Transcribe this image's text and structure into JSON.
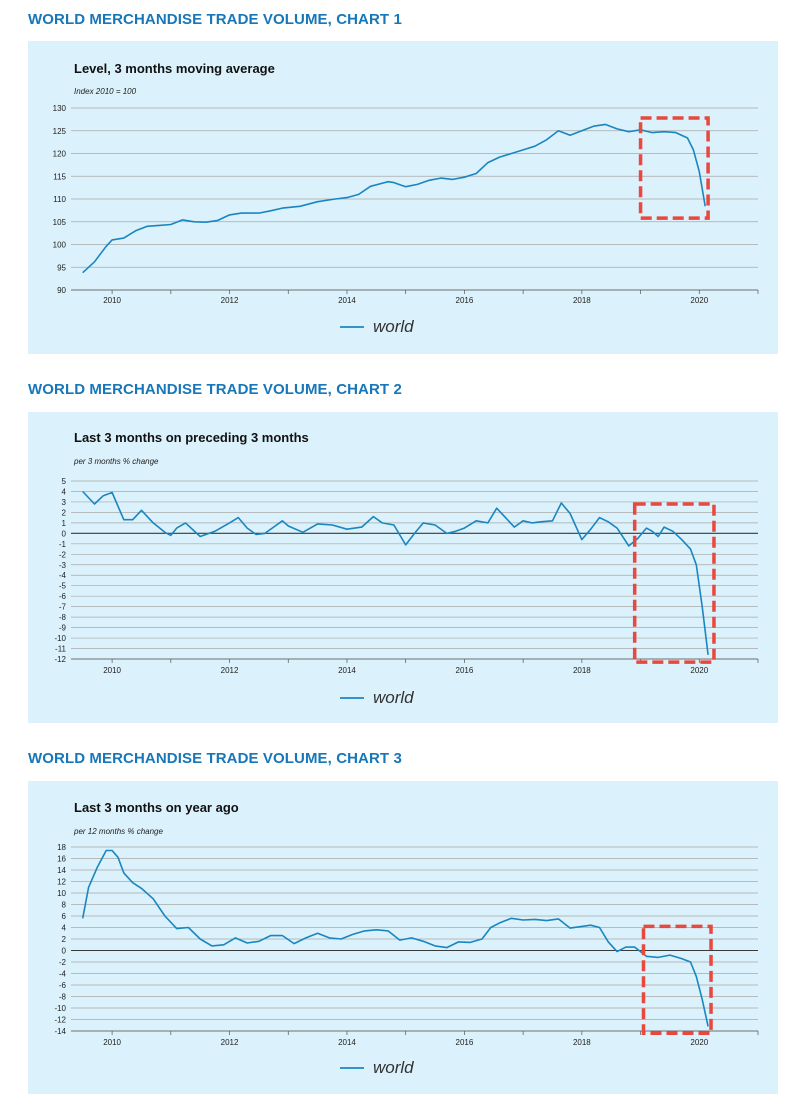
{
  "headings": [
    "WORLD MERCHANDISE TRADE VOLUME, CHART 1",
    "WORLD MERCHANDISE TRADE VOLUME, CHART 2",
    "WORLD MERCHANDISE TRADE VOLUME, CHART 3"
  ],
  "colors": {
    "line": "#1a86c0",
    "heading": "#1777b8",
    "panel": "#dbf1fb",
    "highlight": "#e8483d"
  },
  "chart_data": [
    {
      "type": "line",
      "title": "Level, 3 months moving average",
      "unit_label": "Index 2010 = 100",
      "ylim": [
        90,
        130
      ],
      "yticks": [
        90,
        95,
        100,
        105,
        110,
        115,
        120,
        125,
        130
      ],
      "xlim": [
        2009.3,
        2021.0
      ],
      "xticks": [
        2010,
        2012,
        2014,
        2016,
        2018,
        2020
      ],
      "legend": [
        "world"
      ],
      "legend_position": "bottom-center",
      "grid": true,
      "highlight_box": {
        "x": [
          2019.0,
          2020.15
        ],
        "y": [
          105.8,
          127.8
        ]
      },
      "series": [
        {
          "name": "world",
          "points": [
            [
              2009.5,
              93.8
            ],
            [
              2009.7,
              96.2
            ],
            [
              2009.9,
              99.6
            ],
            [
              2010.0,
              101.0
            ],
            [
              2010.2,
              101.4
            ],
            [
              2010.4,
              103.0
            ],
            [
              2010.6,
              104.0
            ],
            [
              2010.8,
              104.2
            ],
            [
              2011.0,
              104.4
            ],
            [
              2011.2,
              105.4
            ],
            [
              2011.4,
              105.0
            ],
            [
              2011.6,
              104.9
            ],
            [
              2011.8,
              105.3
            ],
            [
              2012.0,
              106.5
            ],
            [
              2012.2,
              106.9
            ],
            [
              2012.5,
              106.9
            ],
            [
              2012.7,
              107.4
            ],
            [
              2012.9,
              108.0
            ],
            [
              2013.2,
              108.4
            ],
            [
              2013.5,
              109.4
            ],
            [
              2013.8,
              110.0
            ],
            [
              2014.0,
              110.3
            ],
            [
              2014.2,
              111.0
            ],
            [
              2014.4,
              112.8
            ],
            [
              2014.7,
              113.8
            ],
            [
              2014.8,
              113.6
            ],
            [
              2015.0,
              112.7
            ],
            [
              2015.2,
              113.2
            ],
            [
              2015.4,
              114.1
            ],
            [
              2015.6,
              114.6
            ],
            [
              2015.8,
              114.3
            ],
            [
              2016.0,
              114.8
            ],
            [
              2016.2,
              115.6
            ],
            [
              2016.4,
              118.0
            ],
            [
              2016.6,
              119.2
            ],
            [
              2016.8,
              120.0
            ],
            [
              2017.0,
              120.8
            ],
            [
              2017.2,
              121.6
            ],
            [
              2017.4,
              123.0
            ],
            [
              2017.6,
              125.0
            ],
            [
              2017.8,
              124.0
            ],
            [
              2018.0,
              125.0
            ],
            [
              2018.2,
              126.0
            ],
            [
              2018.4,
              126.4
            ],
            [
              2018.6,
              125.4
            ],
            [
              2018.8,
              124.8
            ],
            [
              2019.0,
              125.2
            ],
            [
              2019.2,
              124.6
            ],
            [
              2019.4,
              124.8
            ],
            [
              2019.6,
              124.6
            ],
            [
              2019.8,
              123.4
            ],
            [
              2019.9,
              120.8
            ],
            [
              2020.0,
              116.0
            ],
            [
              2020.1,
              108.4
            ]
          ]
        }
      ]
    },
    {
      "type": "line",
      "title": "Last 3 months on preceding 3 months",
      "unit_label": "per 3 months % change",
      "ylim": [
        -12,
        5
      ],
      "yticks": [
        5,
        4,
        3,
        2,
        1,
        0,
        -1,
        -2,
        -3,
        -4,
        -5,
        -6,
        -7,
        -8,
        -9,
        -10,
        -11,
        -12
      ],
      "xlim": [
        2009.3,
        2021.0
      ],
      "xticks": [
        2010,
        2012,
        2014,
        2016,
        2018,
        2020
      ],
      "legend": [
        "world"
      ],
      "legend_position": "bottom-center",
      "grid": true,
      "highlight_box": {
        "x": [
          2018.9,
          2020.25
        ],
        "y": [
          -12.3,
          2.8
        ]
      },
      "series": [
        {
          "name": "world",
          "points": [
            [
              2009.5,
              4.0
            ],
            [
              2009.7,
              2.8
            ],
            [
              2009.85,
              3.6
            ],
            [
              2010.0,
              3.9
            ],
            [
              2010.2,
              1.3
            ],
            [
              2010.35,
              1.3
            ],
            [
              2010.5,
              2.2
            ],
            [
              2010.7,
              1.0
            ],
            [
              2010.9,
              0.1
            ],
            [
              2011.0,
              -0.2
            ],
            [
              2011.1,
              0.5
            ],
            [
              2011.25,
              1.0
            ],
            [
              2011.5,
              -0.3
            ],
            [
              2011.75,
              0.2
            ],
            [
              2012.0,
              1.0
            ],
            [
              2012.15,
              1.5
            ],
            [
              2012.3,
              0.5
            ],
            [
              2012.45,
              -0.1
            ],
            [
              2012.6,
              0.0
            ],
            [
              2012.75,
              0.6
            ],
            [
              2012.9,
              1.2
            ],
            [
              2013.0,
              0.7
            ],
            [
              2013.25,
              0.1
            ],
            [
              2013.5,
              0.9
            ],
            [
              2013.75,
              0.8
            ],
            [
              2014.0,
              0.4
            ],
            [
              2014.25,
              0.6
            ],
            [
              2014.45,
              1.6
            ],
            [
              2014.6,
              1.0
            ],
            [
              2014.8,
              0.8
            ],
            [
              2015.0,
              -1.1
            ],
            [
              2015.15,
              0.0
            ],
            [
              2015.3,
              1.0
            ],
            [
              2015.5,
              0.8
            ],
            [
              2015.7,
              0.0
            ],
            [
              2015.85,
              0.2
            ],
            [
              2016.0,
              0.5
            ],
            [
              2016.2,
              1.2
            ],
            [
              2016.4,
              1.0
            ],
            [
              2016.55,
              2.4
            ],
            [
              2016.7,
              1.5
            ],
            [
              2016.85,
              0.6
            ],
            [
              2017.0,
              1.2
            ],
            [
              2017.15,
              1.0
            ],
            [
              2017.3,
              1.1
            ],
            [
              2017.5,
              1.2
            ],
            [
              2017.65,
              2.9
            ],
            [
              2017.8,
              1.9
            ],
            [
              2018.0,
              -0.6
            ],
            [
              2018.15,
              0.4
            ],
            [
              2018.3,
              1.5
            ],
            [
              2018.45,
              1.1
            ],
            [
              2018.6,
              0.5
            ],
            [
              2018.8,
              -1.2
            ],
            [
              2018.95,
              -0.5
            ],
            [
              2019.1,
              0.5
            ],
            [
              2019.2,
              0.2
            ],
            [
              2019.3,
              -0.3
            ],
            [
              2019.4,
              0.6
            ],
            [
              2019.55,
              0.2
            ],
            [
              2019.7,
              -0.6
            ],
            [
              2019.85,
              -1.5
            ],
            [
              2019.95,
              -3.0
            ],
            [
              2020.05,
              -7.0
            ],
            [
              2020.15,
              -11.6
            ]
          ]
        }
      ]
    },
    {
      "type": "line",
      "title": "Last 3 months on year ago",
      "unit_label": "per 12 months % change",
      "ylim": [
        -14,
        18
      ],
      "yticks": [
        18,
        16,
        14,
        12,
        10,
        8,
        6,
        4,
        2,
        0,
        -2,
        -4,
        -6,
        -8,
        -10,
        -12,
        -14
      ],
      "xlim": [
        2009.3,
        2021.0
      ],
      "xticks": [
        2010,
        2012,
        2014,
        2016,
        2018,
        2020
      ],
      "legend": [
        "world"
      ],
      "legend_position": "bottom-center",
      "grid": true,
      "highlight_box": {
        "x": [
          2019.05,
          2020.2
        ],
        "y": [
          -14.4,
          4.2
        ]
      },
      "series": [
        {
          "name": "world",
          "points": [
            [
              2009.5,
              5.6
            ],
            [
              2009.6,
              11.0
            ],
            [
              2009.75,
              14.5
            ],
            [
              2009.9,
              17.4
            ],
            [
              2010.0,
              17.4
            ],
            [
              2010.1,
              16.2
            ],
            [
              2010.2,
              13.5
            ],
            [
              2010.35,
              11.8
            ],
            [
              2010.5,
              10.8
            ],
            [
              2010.7,
              9.0
            ],
            [
              2010.9,
              6.0
            ],
            [
              2011.1,
              3.8
            ],
            [
              2011.3,
              4.0
            ],
            [
              2011.5,
              2.0
            ],
            [
              2011.7,
              0.8
            ],
            [
              2011.9,
              1.0
            ],
            [
              2012.1,
              2.2
            ],
            [
              2012.3,
              1.3
            ],
            [
              2012.5,
              1.6
            ],
            [
              2012.7,
              2.6
            ],
            [
              2012.9,
              2.6
            ],
            [
              2013.1,
              1.2
            ],
            [
              2013.3,
              2.2
            ],
            [
              2013.5,
              3.0
            ],
            [
              2013.7,
              2.2
            ],
            [
              2013.9,
              2.0
            ],
            [
              2014.1,
              2.8
            ],
            [
              2014.3,
              3.4
            ],
            [
              2014.5,
              3.6
            ],
            [
              2014.7,
              3.4
            ],
            [
              2014.9,
              1.8
            ],
            [
              2015.1,
              2.2
            ],
            [
              2015.3,
              1.6
            ],
            [
              2015.5,
              0.8
            ],
            [
              2015.7,
              0.5
            ],
            [
              2015.9,
              1.5
            ],
            [
              2016.1,
              1.4
            ],
            [
              2016.3,
              2.0
            ],
            [
              2016.45,
              4.0
            ],
            [
              2016.6,
              4.8
            ],
            [
              2016.8,
              5.6
            ],
            [
              2017.0,
              5.3
            ],
            [
              2017.2,
              5.4
            ],
            [
              2017.4,
              5.2
            ],
            [
              2017.6,
              5.5
            ],
            [
              2017.8,
              3.9
            ],
            [
              2018.0,
              4.2
            ],
            [
              2018.15,
              4.4
            ],
            [
              2018.3,
              4.0
            ],
            [
              2018.45,
              1.5
            ],
            [
              2018.6,
              -0.2
            ],
            [
              2018.75,
              0.6
            ],
            [
              2018.9,
              0.6
            ],
            [
              2019.1,
              -1.0
            ],
            [
              2019.3,
              -1.2
            ],
            [
              2019.5,
              -0.8
            ],
            [
              2019.7,
              -1.4
            ],
            [
              2019.85,
              -2.0
            ],
            [
              2019.95,
              -4.5
            ],
            [
              2020.05,
              -8.5
            ],
            [
              2020.15,
              -13.2
            ]
          ]
        }
      ]
    }
  ]
}
